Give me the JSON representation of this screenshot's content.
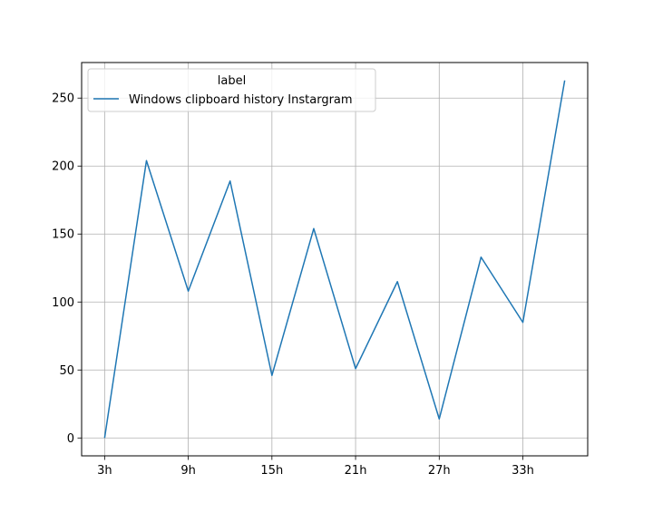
{
  "chart_data": {
    "type": "line",
    "x": [
      3,
      6,
      9,
      12,
      15,
      18,
      21,
      24,
      27,
      30,
      33,
      36
    ],
    "series": [
      {
        "name": "Windows clipboard history Instargram",
        "color": "#1f77b4",
        "values": [
          0,
          204,
          108,
          189,
          46,
          154,
          51,
          115,
          14,
          133,
          85,
          263
        ]
      }
    ],
    "x_ticks": [
      3,
      9,
      15,
      21,
      27,
      33
    ],
    "x_tick_labels": [
      "3h",
      "9h",
      "15h",
      "21h",
      "27h",
      "33h"
    ],
    "y_ticks": [
      0,
      50,
      100,
      150,
      200,
      250
    ],
    "y_tick_labels": [
      "0",
      "50",
      "100",
      "150",
      "200",
      "250"
    ],
    "xlim": [
      1.35,
      37.65
    ],
    "ylim": [
      -13.15,
      276.15
    ],
    "grid": true,
    "legend": {
      "title": "label",
      "placement": "top-left"
    },
    "title": "",
    "xlabel": "",
    "ylabel": ""
  }
}
